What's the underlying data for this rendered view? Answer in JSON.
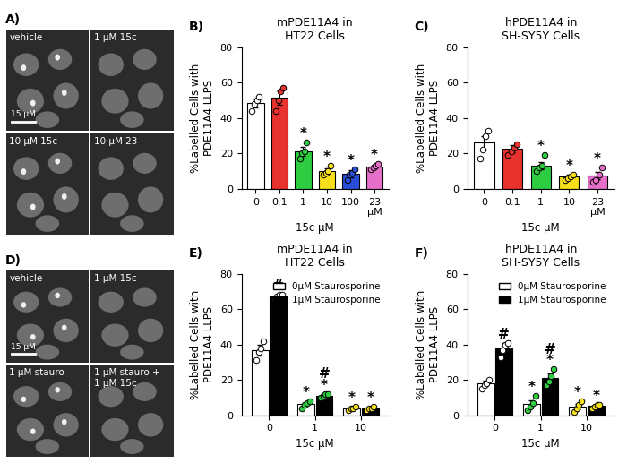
{
  "chart_data": [
    {
      "panel": "B)",
      "type": "bar",
      "title": "mPDE11A4 in\nHT22 Cells",
      "y_label": "%Labelled Cells with\nPDE11A4 LLPS",
      "x_label": "15c μM",
      "categories": [
        "0",
        "0.1",
        "1",
        "10",
        "100",
        "23\nμM"
      ],
      "values": [
        48.5,
        51.5,
        21,
        10,
        8.5,
        12.5
      ],
      "errors": [
        2.5,
        4,
        2.5,
        1.5,
        2,
        1
      ],
      "points": [
        [
          44,
          48,
          50,
          52
        ],
        [
          44,
          50,
          55,
          57
        ],
        [
          17,
          20,
          21,
          26
        ],
        [
          8,
          9,
          10,
          13
        ],
        [
          5,
          8,
          9,
          11
        ],
        [
          11,
          12,
          13,
          14
        ]
      ],
      "colors": [
        "#ffffff",
        "#e8322e",
        "#2ecc40",
        "#f7e019",
        "#2a4fd6",
        "#e66fc9"
      ],
      "significance": [
        null,
        null,
        "*",
        "*",
        "*",
        "*"
      ],
      "ylim": [
        0,
        80
      ],
      "yticks": [
        0,
        20,
        40,
        60,
        80
      ]
    },
    {
      "panel": "C)",
      "type": "bar",
      "title": "hPDE11A4 in\nSH-SY5Y Cells",
      "y_label": "%Labelled Cells with\nPDE11A4 LLPS",
      "x_label": "15c μM",
      "categories": [
        "0",
        "0.1",
        "1",
        "10",
        "23\nμM"
      ],
      "values": [
        26,
        22.5,
        13,
        7,
        7.5
      ],
      "errors": [
        4,
        2,
        2,
        1,
        2
      ],
      "points": [
        [
          17,
          22,
          30,
          33
        ],
        [
          19,
          21,
          23,
          25
        ],
        [
          10,
          12,
          13,
          19
        ],
        [
          5,
          6,
          7,
          8
        ],
        [
          4,
          5,
          8,
          12
        ]
      ],
      "colors": [
        "#ffffff",
        "#e8322e",
        "#2ecc40",
        "#f7e019",
        "#e66fc9"
      ],
      "significance": [
        null,
        null,
        "*",
        "*",
        "*"
      ],
      "ylim": [
        0,
        80
      ],
      "yticks": [
        0,
        20,
        40,
        60,
        80
      ]
    },
    {
      "panel": "E)",
      "type": "bar",
      "title": "mPDE11A4 in\nHT22 Cells",
      "y_label": "%Labelled Cells with\nPDE11A4 LLPS",
      "x_label": "15c μM",
      "categories": [
        "0",
        "1",
        "10"
      ],
      "legend": "upper right",
      "series": [
        {
          "name": "0μM Staurosporine",
          "color": "#ffffff",
          "values": [
            37,
            6.5,
            4
          ],
          "errors": [
            3,
            1,
            0.7
          ],
          "points": [
            [
              31,
              36,
              38,
              42
            ],
            [
              4,
              6,
              7,
              8
            ],
            [
              3,
              4,
              4,
              5
            ]
          ],
          "point_colors": [
            "#ffffff",
            "#2ecc40",
            "#f7e019"
          ],
          "significance": [
            null,
            "*",
            "*"
          ]
        },
        {
          "name": "1μM Staurosporine",
          "color": "#000000",
          "values": [
            67,
            11,
            4
          ],
          "errors": [
            1,
            0.5,
            0.5
          ],
          "points": [
            [
              65,
              67,
              68,
              68
            ],
            [
              10,
              11,
              12,
              12
            ],
            [
              3,
              4,
              4,
              5
            ]
          ],
          "point_colors": [
            "#ffffff",
            "#2ecc40",
            "#f7e019"
          ],
          "significance": [
            "#",
            "#\n*",
            "*"
          ]
        }
      ],
      "ylim": [
        0,
        80
      ],
      "yticks": [
        0,
        20,
        40,
        60,
        80
      ]
    },
    {
      "panel": "F)",
      "type": "bar",
      "title": "hPDE11A4 in\nSH-SY5Y Cells",
      "y_label": "%Labelled Cells with\nPDE11A4 LLPS",
      "x_label": "15c μM",
      "categories": [
        "0",
        "1",
        "10"
      ],
      "legend": "upper right",
      "series": [
        {
          "name": "0μM Staurosporine",
          "color": "#ffffff",
          "values": [
            18,
            6.5,
            5
          ],
          "errors": [
            1.5,
            2,
            1.5
          ],
          "points": [
            [
              15,
              17,
              18,
              20
            ],
            [
              3,
              5,
              7,
              11
            ],
            [
              2,
              4,
              6,
              8
            ]
          ],
          "point_colors": [
            "#ffffff",
            "#2ecc40",
            "#f7e019"
          ],
          "significance": [
            null,
            "*",
            "*"
          ]
        },
        {
          "name": "1μM Staurosporine",
          "color": "#000000",
          "values": [
            38,
            21,
            5.5
          ],
          "errors": [
            3,
            2.5,
            0.5
          ],
          "points": [
            [
              33,
              37,
              40,
              41
            ],
            [
              17,
              19,
              22,
              26
            ],
            [
              4,
              5,
              6,
              6
            ]
          ],
          "point_colors": [
            "#ffffff",
            "#2ecc40",
            "#f7e019"
          ],
          "significance": [
            "#",
            "#\n*",
            "*"
          ]
        }
      ],
      "ylim": [
        0,
        80
      ],
      "yticks": [
        0,
        20,
        40,
        60,
        80
      ]
    }
  ],
  "images": [
    {
      "panel": "A)",
      "tiles": [
        "vehicle",
        "1 μM 15c",
        "10 μM 15c",
        "10 μM 23"
      ],
      "scale_bar": "15 μM"
    },
    {
      "panel": "D)",
      "tiles": [
        "vehicle",
        "1 μM 15c",
        "1 μM stauro",
        "1 μM stauro +\n1 μM 15c"
      ],
      "scale_bar": "15 μM"
    }
  ]
}
